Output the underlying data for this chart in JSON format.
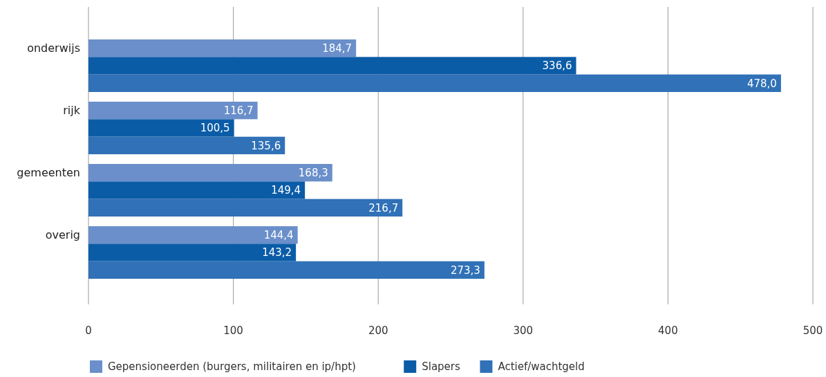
{
  "chart_data": {
    "type": "bar",
    "orientation": "horizontal",
    "categories": [
      "onderwijs",
      "rijk",
      "gemeenten",
      "overig"
    ],
    "series": [
      {
        "name": "Gepensioneerden (burgers, militairen en ip/hpt)",
        "color": "#6a8fca",
        "values": [
          184.7,
          116.7,
          168.3,
          144.4
        ],
        "value_labels": [
          "184,7",
          "116,7",
          "168,3",
          "144,4"
        ]
      },
      {
        "name": "Slapers",
        "color": "#0b5ca7",
        "values": [
          336.6,
          100.5,
          149.4,
          143.2
        ],
        "value_labels": [
          "336,6",
          "100,5",
          "149,4",
          "143,2"
        ]
      },
      {
        "name": "Actief/wachtgeld",
        "color": "#3071b7",
        "values": [
          478.0,
          135.6,
          216.7,
          273.3
        ],
        "value_labels": [
          "478,0",
          "135,6",
          "216,7",
          "273,3"
        ]
      }
    ],
    "xlim": [
      0,
      500
    ],
    "xticks": [
      0,
      100,
      200,
      300,
      400,
      500
    ],
    "grid": "x",
    "legend": "bottom"
  }
}
